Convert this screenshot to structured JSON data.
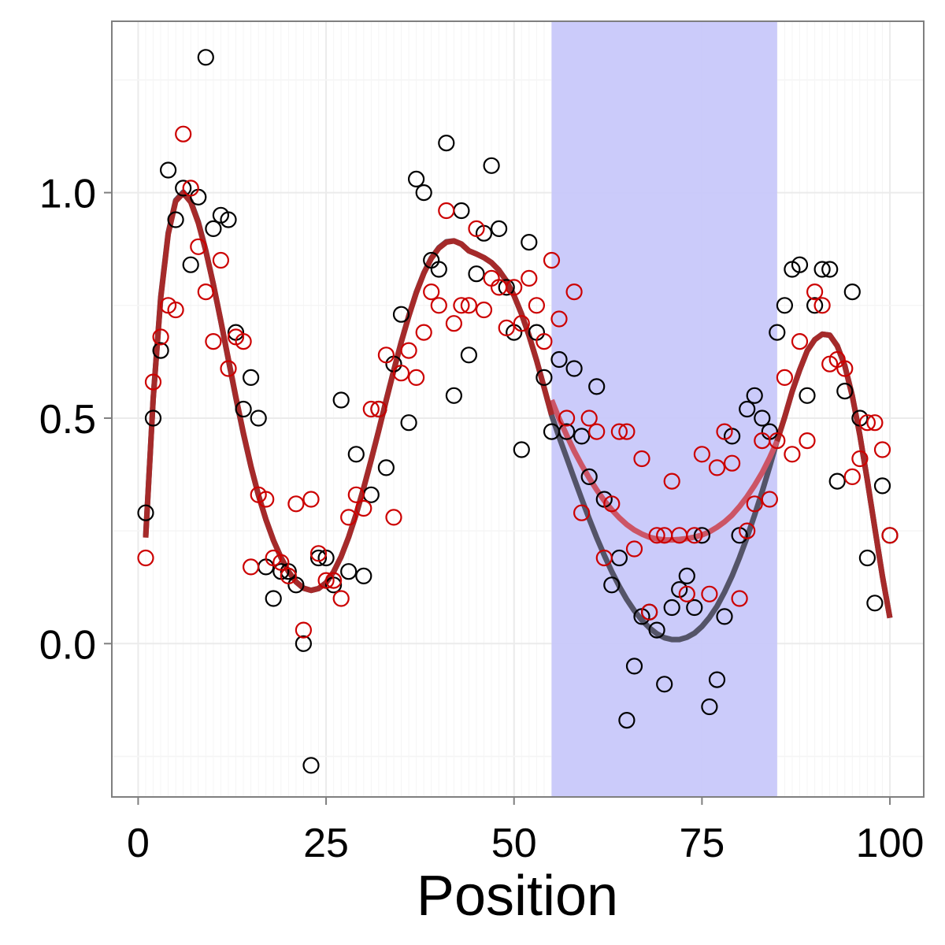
{
  "chart_data": {
    "type": "scatter",
    "title": "",
    "xlabel": "Position",
    "ylabel": "",
    "xlim": [
      -3.5,
      104.5
    ],
    "ylim": [
      -0.34,
      1.38
    ],
    "x_ticks": [
      0,
      25,
      50,
      75,
      100
    ],
    "x_tick_labels": [
      "0",
      "25",
      "50",
      "75",
      "100"
    ],
    "y_ticks": [
      0.0,
      0.5,
      1.0
    ],
    "y_tick_labels": [
      "0.0",
      "0.5",
      "1.0"
    ],
    "grid": true,
    "legend": "none",
    "colors": {
      "background": "#ffffff",
      "panel_border": "#7f7f7f",
      "grid_major": "#ebebeb",
      "grid_minor": "#f5f5f5",
      "highlight": "#c8c8fa",
      "black_series": "#000000",
      "red_series": "#cc0000",
      "dark_curve": "#545468",
      "red_curve": "#cc5566",
      "shared_curve": "#a52a2a"
    },
    "highlight_region": {
      "xmin": 55,
      "xmax": 85
    },
    "series": [
      {
        "name": "black points",
        "marker": "open-circle",
        "x": [
          1,
          2,
          3,
          4,
          5,
          6,
          7,
          8,
          9,
          10,
          11,
          12,
          13,
          14,
          15,
          16,
          17,
          18,
          19,
          20,
          21,
          22,
          23,
          24,
          25,
          26,
          27,
          28,
          29,
          30,
          31,
          32,
          33,
          34,
          35,
          36,
          37,
          38,
          39,
          40,
          41,
          42,
          43,
          44,
          45,
          46,
          47,
          48,
          49,
          50,
          51,
          52,
          53,
          54,
          55,
          56,
          57,
          58,
          59,
          60,
          61,
          62,
          63,
          64,
          65,
          66,
          67,
          68,
          69,
          70,
          71,
          72,
          73,
          74,
          75,
          76,
          77,
          78,
          79,
          80,
          81,
          82,
          83,
          84,
          85,
          86,
          87,
          88,
          89,
          90,
          91,
          92,
          93,
          94,
          95,
          96,
          97,
          98,
          99,
          100
        ],
        "y": [
          0.29,
          0.5,
          0.65,
          1.05,
          0.94,
          1.01,
          0.84,
          0.99,
          1.3,
          0.92,
          0.95,
          0.94,
          0.69,
          0.52,
          0.59,
          0.5,
          0.17,
          0.1,
          0.16,
          0.16,
          0.13,
          0.0,
          -0.27,
          0.19,
          0.19,
          0.13,
          0.54,
          0.16,
          0.42,
          0.15,
          0.33,
          0.52,
          0.39,
          0.62,
          0.73,
          0.49,
          1.03,
          1.0,
          0.85,
          0.83,
          1.11,
          0.55,
          0.96,
          0.64,
          0.82,
          0.91,
          1.06,
          0.92,
          0.79,
          0.69,
          0.43,
          0.89,
          0.69,
          0.59,
          0.47,
          0.63,
          0.47,
          0.61,
          0.46,
          0.37,
          0.57,
          0.32,
          0.13,
          0.19,
          -0.17,
          -0.05,
          0.06,
          0.07,
          0.03,
          -0.09,
          0.08,
          0.12,
          0.15,
          0.08,
          0.24,
          -0.14,
          -0.08,
          0.06,
          0.46,
          0.24,
          0.52,
          0.55,
          0.5,
          0.47,
          0.69,
          0.75,
          0.83,
          0.84,
          0.55,
          0.75,
          0.83,
          0.83,
          0.36,
          0.56,
          0.78,
          0.5,
          0.19,
          0.09,
          0.35,
          0.24
        ]
      },
      {
        "name": "red points",
        "marker": "open-circle",
        "x": [
          1,
          2,
          3,
          4,
          5,
          6,
          7,
          8,
          9,
          10,
          11,
          12,
          13,
          14,
          15,
          16,
          17,
          18,
          19,
          20,
          21,
          22,
          23,
          24,
          25,
          26,
          27,
          28,
          29,
          30,
          31,
          32,
          33,
          34,
          35,
          36,
          37,
          38,
          39,
          40,
          41,
          42,
          43,
          44,
          45,
          46,
          47,
          48,
          49,
          50,
          51,
          52,
          53,
          54,
          55,
          56,
          57,
          58,
          59,
          60,
          61,
          62,
          63,
          64,
          65,
          66,
          67,
          68,
          69,
          70,
          71,
          72,
          73,
          74,
          75,
          76,
          77,
          78,
          79,
          80,
          81,
          82,
          83,
          84,
          85,
          86,
          87,
          88,
          89,
          90,
          91,
          92,
          93,
          94,
          95,
          96,
          97,
          98,
          99,
          100
        ],
        "y": [
          0.19,
          0.58,
          0.68,
          0.75,
          0.74,
          1.13,
          1.01,
          0.88,
          0.78,
          0.67,
          0.85,
          0.61,
          0.68,
          0.67,
          0.17,
          0.33,
          0.32,
          0.19,
          0.18,
          0.15,
          0.31,
          0.03,
          0.32,
          0.2,
          0.14,
          0.14,
          0.1,
          0.28,
          0.33,
          0.3,
          0.52,
          0.52,
          0.64,
          0.28,
          0.6,
          0.65,
          0.59,
          0.69,
          0.78,
          0.75,
          0.96,
          0.71,
          0.75,
          0.75,
          0.92,
          0.74,
          0.81,
          0.79,
          0.7,
          0.79,
          0.71,
          0.81,
          0.75,
          0.67,
          0.85,
          0.72,
          0.5,
          0.78,
          0.29,
          0.5,
          0.47,
          0.19,
          0.31,
          0.47,
          0.47,
          0.21,
          0.41,
          0.07,
          0.24,
          0.24,
          0.36,
          0.24,
          0.11,
          0.24,
          0.42,
          0.11,
          0.39,
          0.47,
          0.4,
          0.1,
          0.25,
          0.31,
          0.45,
          0.32,
          0.45,
          0.59,
          0.42,
          0.67,
          0.45,
          0.78,
          0.75,
          0.62,
          0.63,
          0.61,
          0.37,
          0.41,
          0.49,
          0.49,
          0.43,
          0.24
        ]
      }
    ],
    "curves": [
      {
        "name": "dark fit",
        "x": [
          1,
          2,
          3,
          4,
          5,
          6,
          7,
          8,
          9,
          10,
          11,
          12,
          13,
          14,
          15,
          16,
          17,
          18,
          19,
          20,
          21,
          22,
          23,
          24,
          25,
          26,
          27,
          28,
          29,
          30,
          31,
          32,
          33,
          34,
          35,
          36,
          37,
          38,
          39,
          40,
          41,
          42,
          43,
          44,
          45,
          46,
          47,
          48,
          49,
          50,
          51,
          52,
          53,
          54,
          55,
          56,
          57,
          58,
          59,
          60,
          61,
          62,
          63,
          64,
          65,
          66,
          67,
          68,
          69,
          70,
          71,
          72,
          73,
          74,
          75,
          76,
          77,
          78,
          79,
          80,
          81,
          82,
          83,
          84,
          85,
          86,
          87,
          88,
          89,
          90,
          91,
          92,
          93,
          94,
          95,
          96,
          97,
          98,
          99,
          100
        ],
        "y": [
          0.238,
          0.543,
          0.769,
          0.911,
          0.983,
          1.001,
          0.981,
          0.935,
          0.872,
          0.797,
          0.715,
          0.629,
          0.545,
          0.465,
          0.393,
          0.329,
          0.275,
          0.229,
          0.191,
          0.16,
          0.137,
          0.123,
          0.118,
          0.122,
          0.135,
          0.159,
          0.193,
          0.236,
          0.287,
          0.345,
          0.407,
          0.473,
          0.54,
          0.606,
          0.669,
          0.727,
          0.779,
          0.822,
          0.855,
          0.878,
          0.891,
          0.893,
          0.886,
          0.871,
          0.864,
          0.856,
          0.845,
          0.828,
          0.804,
          0.772,
          0.731,
          0.683,
          0.628,
          0.568,
          0.506,
          0.458,
          0.412,
          0.366,
          0.321,
          0.277,
          0.235,
          0.196,
          0.16,
          0.127,
          0.098,
          0.073,
          0.052,
          0.035,
          0.022,
          0.013,
          0.009,
          0.009,
          0.014,
          0.023,
          0.038,
          0.058,
          0.083,
          0.114,
          0.15,
          0.191,
          0.236,
          0.285,
          0.337,
          0.392,
          0.45,
          0.502,
          0.559,
          0.607,
          0.649,
          0.674,
          0.686,
          0.684,
          0.66,
          0.616,
          0.549,
          0.462,
          0.362,
          0.256,
          0.15,
          0.057
        ]
      },
      {
        "name": "red fit",
        "x": [
          55,
          56,
          57,
          58,
          59,
          60,
          61,
          62,
          63,
          64,
          65,
          66,
          67,
          68,
          69,
          70,
          71,
          72,
          73,
          74,
          75,
          76,
          77,
          78,
          79,
          80,
          81,
          82,
          83,
          84,
          85
        ],
        "y": [
          0.54,
          0.499,
          0.462,
          0.427,
          0.396,
          0.367,
          0.341,
          0.317,
          0.297,
          0.279,
          0.264,
          0.252,
          0.243,
          0.236,
          0.232,
          0.23,
          0.23,
          0.231,
          0.233,
          0.236,
          0.241,
          0.248,
          0.258,
          0.27,
          0.285,
          0.304,
          0.326,
          0.351,
          0.379,
          0.412,
          0.449
        ]
      },
      {
        "name": "shared fit",
        "x": [
          1,
          2,
          3,
          4,
          5,
          6,
          7,
          8,
          9,
          10,
          11,
          12,
          13,
          14,
          15,
          16,
          17,
          18,
          19,
          20,
          21,
          22,
          23,
          24,
          25,
          26,
          27,
          28,
          29,
          30,
          31,
          32,
          33,
          34,
          35,
          36,
          37,
          38,
          39,
          40,
          41,
          42,
          43,
          44,
          45,
          46,
          47,
          48,
          49,
          50,
          51,
          52,
          53,
          54,
          55,
          56,
          57,
          58,
          59,
          60,
          61,
          62,
          63,
          64,
          65,
          66,
          67,
          68,
          69,
          70,
          71,
          72,
          73,
          74,
          75,
          76,
          77,
          78,
          79,
          80,
          81,
          82,
          83,
          84,
          85,
          86,
          87,
          88,
          89,
          90,
          91,
          92,
          93,
          94,
          95,
          96,
          97,
          98,
          99,
          100
        ],
        "y": [
          0.235,
          0.542,
          0.766,
          0.908,
          0.981,
          0.999,
          0.979,
          0.933,
          0.871,
          0.797,
          0.716,
          0.631,
          0.547,
          0.467,
          0.394,
          0.329,
          0.275,
          0.229,
          0.191,
          0.16,
          0.137,
          0.123,
          0.118,
          0.122,
          0.135,
          0.159,
          0.193,
          0.236,
          0.287,
          0.345,
          0.407,
          0.472,
          0.539,
          0.605,
          0.668,
          0.726,
          0.778,
          0.821,
          0.854,
          0.877,
          0.89,
          0.893,
          0.886,
          0.871,
          0.864,
          0.856,
          0.845,
          0.828,
          0.804,
          0.772,
          0.731,
          0.683,
          0.628,
          0.568,
          0.507,
          null,
          null,
          null,
          null,
          null,
          null,
          null,
          null,
          null,
          null,
          null,
          null,
          null,
          null,
          null,
          null,
          null,
          null,
          null,
          null,
          null,
          null,
          null,
          null,
          null,
          null,
          null,
          null,
          null,
          0.449,
          0.502,
          0.559,
          0.607,
          0.649,
          0.674,
          0.686,
          0.684,
          0.66,
          0.616,
          0.549,
          0.462,
          0.362,
          0.256,
          0.15,
          0.057
        ]
      }
    ]
  }
}
